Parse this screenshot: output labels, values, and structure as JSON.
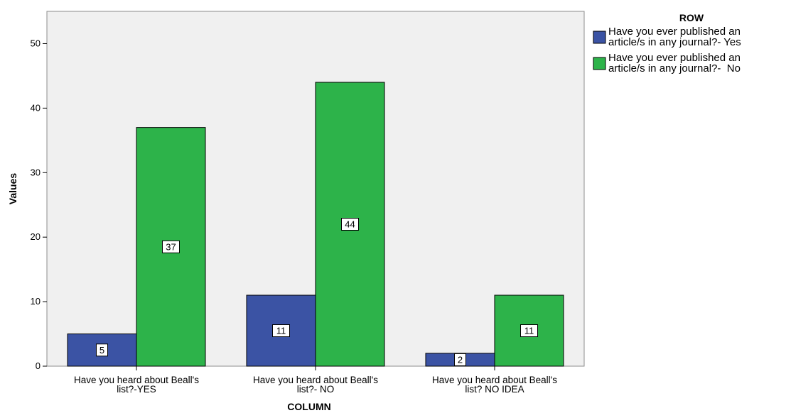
{
  "chart_data": {
    "type": "bar",
    "categories": [
      [
        "Have you heard about Beall's",
        "list?-YES"
      ],
      [
        "Have you heard about Beall's",
        "list?- NO"
      ],
      [
        "Have you heard about Beall's",
        "list? NO IDEA"
      ]
    ],
    "series": [
      {
        "name": [
          "Have you ever published an",
          "article/s in any journal?- Yes"
        ],
        "color": "#3b53a4",
        "values": [
          5,
          11,
          2
        ]
      },
      {
        "name": [
          "Have you ever published an",
          "article/s in any journal?-  No"
        ],
        "color": "#2db34a",
        "values": [
          37,
          44,
          11
        ]
      }
    ],
    "xlabel": "COLUMN",
    "ylabel": "Values",
    "ylim": [
      0,
      55
    ],
    "yticks": [
      0,
      10,
      20,
      30,
      40,
      50
    ],
    "legend_title": "ROW",
    "legend_position": "top-right",
    "grid": false,
    "plot_background": "#f0f0f0"
  }
}
